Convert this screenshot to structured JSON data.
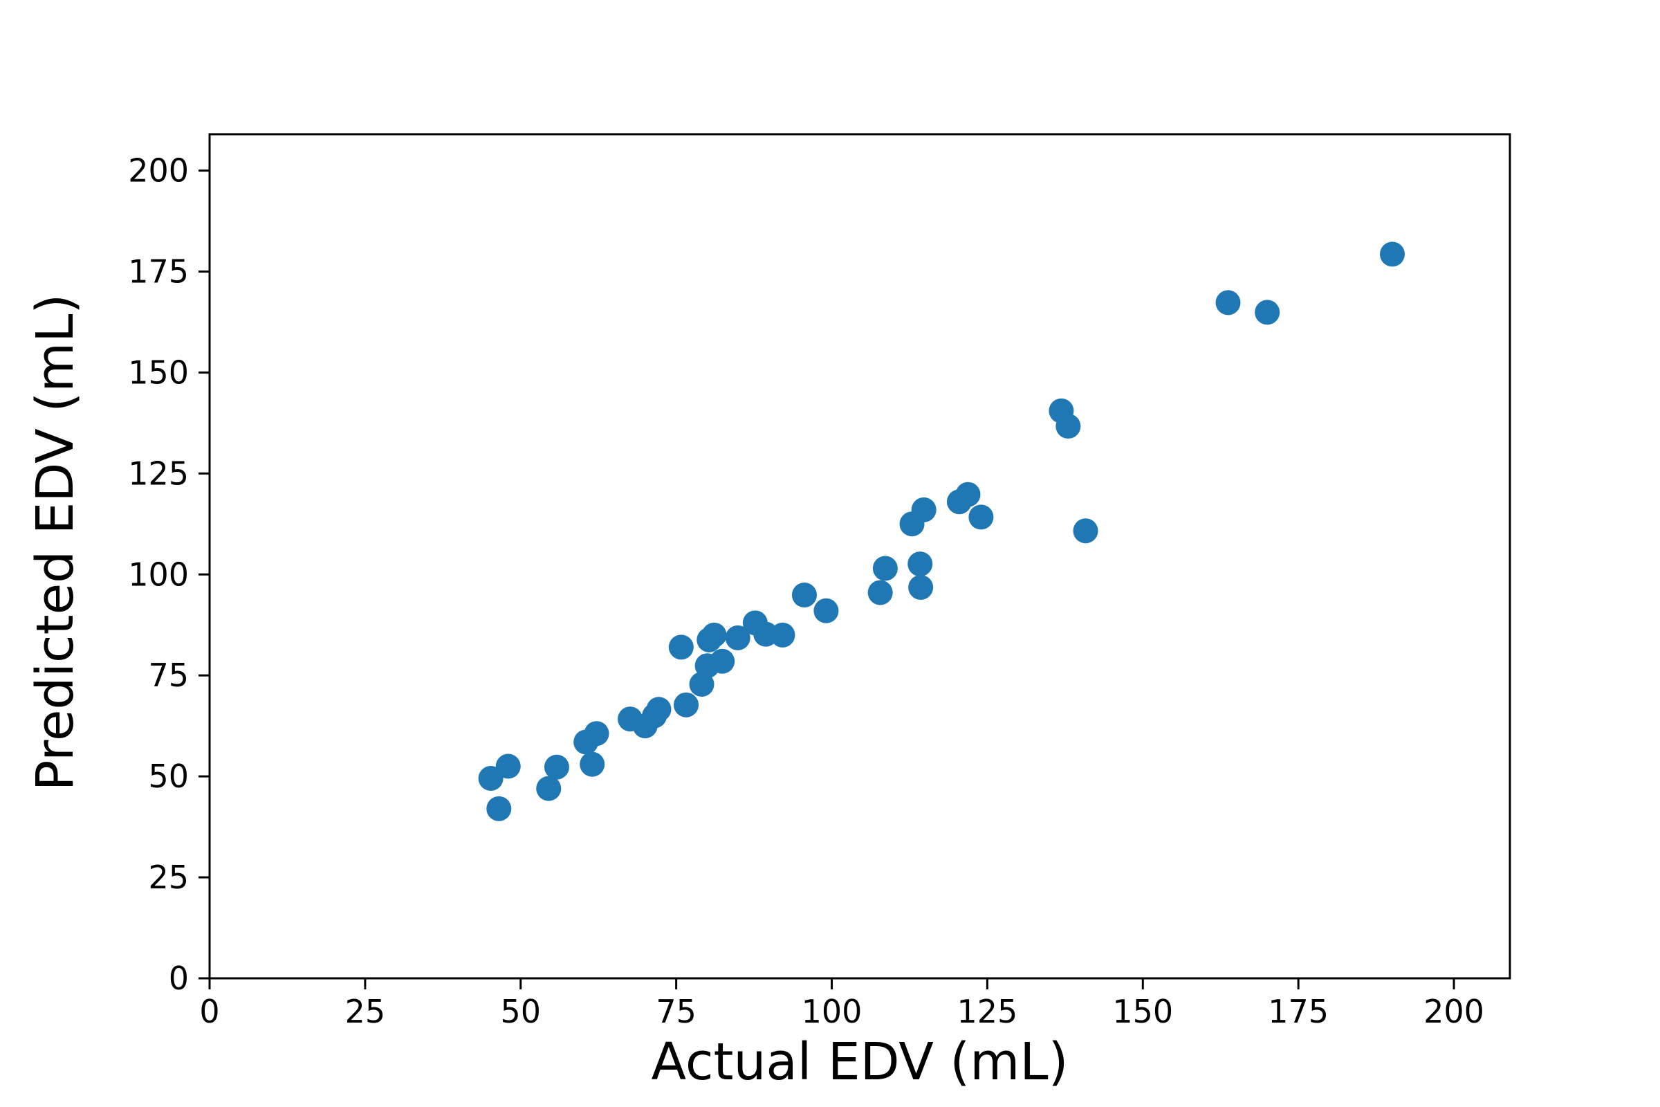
{
  "chart_data": {
    "type": "scatter",
    "title": "",
    "xlabel": "Actual EDV (mL)",
    "ylabel": "Predicted EDV (mL)",
    "xlim": [
      0,
      209
    ],
    "ylim": [
      0,
      209
    ],
    "xticks": [
      0,
      25,
      50,
      75,
      100,
      125,
      150,
      175,
      200
    ],
    "yticks": [
      0,
      25,
      50,
      75,
      100,
      125,
      150,
      175,
      200
    ],
    "grid": false,
    "legend": "none",
    "marker_color": "#1f77b4",
    "series": [
      {
        "points": [
          [
            45.2,
            49.5
          ],
          [
            46.5,
            42.0
          ],
          [
            48.0,
            52.5
          ],
          [
            54.5,
            47.0
          ],
          [
            55.8,
            52.3
          ],
          [
            60.5,
            58.5
          ],
          [
            61.5,
            53.0
          ],
          [
            62.2,
            60.6
          ],
          [
            67.6,
            64.2
          ],
          [
            70.0,
            62.5
          ],
          [
            71.5,
            65.0
          ],
          [
            72.2,
            66.6
          ],
          [
            75.8,
            82.0
          ],
          [
            76.6,
            67.7
          ],
          [
            79.1,
            72.8
          ],
          [
            80.0,
            77.4
          ],
          [
            80.3,
            83.8
          ],
          [
            81.1,
            85.0
          ],
          [
            82.4,
            78.5
          ],
          [
            84.9,
            84.3
          ],
          [
            87.7,
            88.0
          ],
          [
            89.4,
            85.2
          ],
          [
            92.1,
            85.0
          ],
          [
            95.6,
            94.9
          ],
          [
            99.1,
            91.0
          ],
          [
            107.8,
            95.5
          ],
          [
            108.6,
            101.5
          ],
          [
            112.9,
            112.5
          ],
          [
            114.2,
            102.6
          ],
          [
            114.3,
            96.8
          ],
          [
            114.8,
            116.0
          ],
          [
            120.5,
            118.0
          ],
          [
            121.9,
            119.8
          ],
          [
            124.0,
            114.2
          ],
          [
            136.9,
            140.5
          ],
          [
            138.0,
            136.7
          ],
          [
            140.8,
            110.8
          ],
          [
            163.7,
            167.3
          ],
          [
            170.0,
            164.9
          ],
          [
            190.1,
            179.3
          ]
        ]
      }
    ]
  }
}
